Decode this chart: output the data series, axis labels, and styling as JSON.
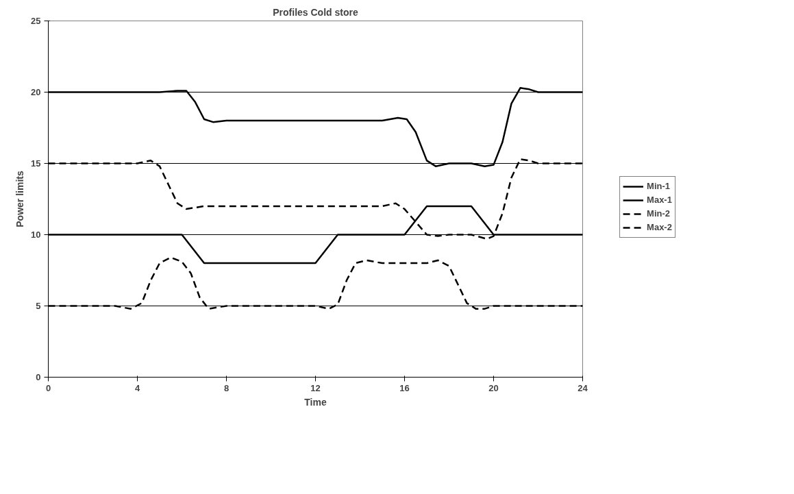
{
  "chart_data": {
    "type": "line",
    "title": "Profiles Cold store",
    "xlabel": "Time",
    "ylabel": "Power limits",
    "xlim": [
      0,
      24
    ],
    "xticks": [
      0,
      4,
      8,
      12,
      16,
      20,
      24
    ],
    "ylim": [
      0,
      25
    ],
    "yticks": [
      0,
      5,
      10,
      15,
      20,
      25
    ],
    "grid": "y",
    "legend": "right",
    "marker": "none",
    "series": [
      {
        "name": "Min-1",
        "color": "#000000",
        "line_style": "solid",
        "x": [
          0,
          6,
          7,
          12,
          13,
          16,
          17,
          19,
          20,
          24
        ],
        "values": [
          10,
          10,
          8,
          8,
          10,
          10,
          12,
          12,
          10,
          10
        ]
      },
      {
        "name": "Max-1",
        "color": "#000000",
        "line_style": "solid",
        "x": [
          0,
          5,
          5.8,
          6.2,
          6.6,
          7,
          7.4,
          8,
          15,
          15.7,
          16.1,
          16.5,
          17,
          17.4,
          18,
          19,
          19.6,
          20,
          20.4,
          20.8,
          21.2,
          21.6,
          22,
          24
        ],
        "values": [
          20,
          20,
          20.1,
          20.1,
          19.3,
          18.1,
          17.9,
          18,
          18,
          18.2,
          18.1,
          17.2,
          15.2,
          14.8,
          15,
          15,
          14.8,
          14.9,
          16.5,
          19.2,
          20.3,
          20.2,
          20,
          20
        ]
      },
      {
        "name": "Min-2",
        "color": "#000000",
        "line_style": "dashed",
        "x": [
          0,
          3,
          3.7,
          4.2,
          4.6,
          5,
          5.5,
          6,
          6.4,
          6.8,
          7.2,
          7.6,
          8,
          12,
          12.6,
          13,
          13.4,
          13.8,
          14.3,
          15,
          17,
          17.5,
          18,
          18.4,
          18.8,
          19.2,
          19.6,
          20,
          24
        ],
        "values": [
          5,
          5,
          4.8,
          5.2,
          6.8,
          8,
          8.4,
          8.1,
          7.3,
          5.6,
          4.8,
          4.9,
          5,
          5,
          4.8,
          5.1,
          6.8,
          8,
          8.2,
          8,
          8,
          8.2,
          7.8,
          6.5,
          5.2,
          4.8,
          4.8,
          5,
          5
        ]
      },
      {
        "name": "Max-2",
        "color": "#000000",
        "line_style": "dashed",
        "x": [
          0,
          4,
          4.6,
          5,
          5.4,
          5.8,
          6.2,
          6.6,
          7,
          15,
          15.6,
          16,
          16.5,
          17,
          17.5,
          18,
          19,
          19.7,
          20,
          20.4,
          20.8,
          21.2,
          21.6,
          22,
          24
        ],
        "values": [
          15,
          15,
          15.2,
          14.8,
          13.5,
          12.2,
          11.8,
          11.9,
          12,
          12,
          12.2,
          11.8,
          10.9,
          10,
          9.9,
          10,
          10,
          9.7,
          9.9,
          11.5,
          14,
          15.3,
          15.2,
          15,
          15
        ]
      }
    ]
  }
}
